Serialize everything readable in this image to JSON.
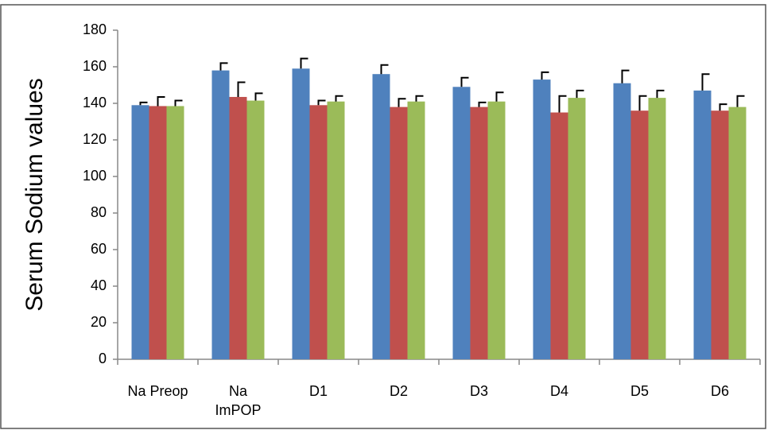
{
  "chart_data": {
    "type": "bar",
    "ylabel": "Serum Sodium values",
    "categories": [
      "Na Preop",
      "Na\nImPOP",
      "D1",
      "D2",
      "D3",
      "D4",
      "D5",
      "D6"
    ],
    "series": [
      {
        "color": "#4f81bd",
        "values": [
          139,
          158,
          159,
          156,
          149,
          153,
          151,
          147
        ],
        "errors": [
          1.5,
          4,
          5.5,
          5,
          5,
          4,
          7,
          9
        ]
      },
      {
        "color": "#c0504d",
        "values": [
          138.5,
          143.5,
          139,
          138,
          138,
          135,
          136,
          136
        ],
        "errors": [
          5,
          8,
          2.5,
          4.5,
          2.5,
          9,
          8,
          3.5
        ]
      },
      {
        "color": "#9bbb59",
        "values": [
          138.5,
          141.5,
          141,
          141,
          141,
          143,
          143,
          138
        ],
        "errors": [
          3,
          4,
          3,
          3,
          5,
          4,
          4,
          6
        ]
      }
    ],
    "ylim": [
      0,
      180
    ],
    "yticks": [
      0,
      20,
      40,
      60,
      80,
      100,
      120,
      140,
      160,
      180
    ]
  }
}
